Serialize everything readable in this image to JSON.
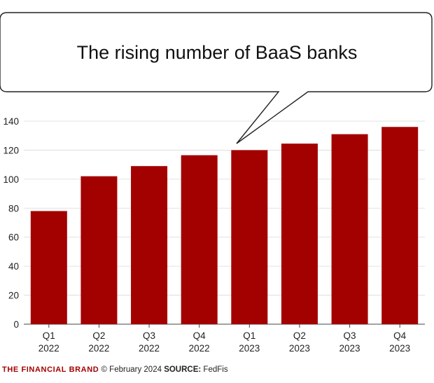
{
  "chart_data": {
    "type": "bar",
    "title": "The rising number of BaaS banks",
    "categories": [
      [
        "Q1",
        "2022"
      ],
      [
        "Q2",
        "2022"
      ],
      [
        "Q3",
        "2022"
      ],
      [
        "Q4",
        "2022"
      ],
      [
        "Q1",
        "2023"
      ],
      [
        "Q2",
        "2023"
      ],
      [
        "Q3",
        "2023"
      ],
      [
        "Q4",
        "2023"
      ]
    ],
    "values": [
      78,
      102,
      109,
      116.5,
      120,
      124.5,
      131,
      136
    ],
    "ylim": [
      0,
      140
    ],
    "yticks": [
      "0",
      "20",
      "40",
      "60",
      "80",
      "100",
      "120",
      "140"
    ],
    "xlabel": "",
    "ylabel": "",
    "grid": true,
    "bar_color": "#a30000"
  },
  "footer": {
    "brand": "THE FINANCIAL BRAND",
    "credit": "© February 2024",
    "source_label": "SOURCE:",
    "source": "FedFis"
  }
}
